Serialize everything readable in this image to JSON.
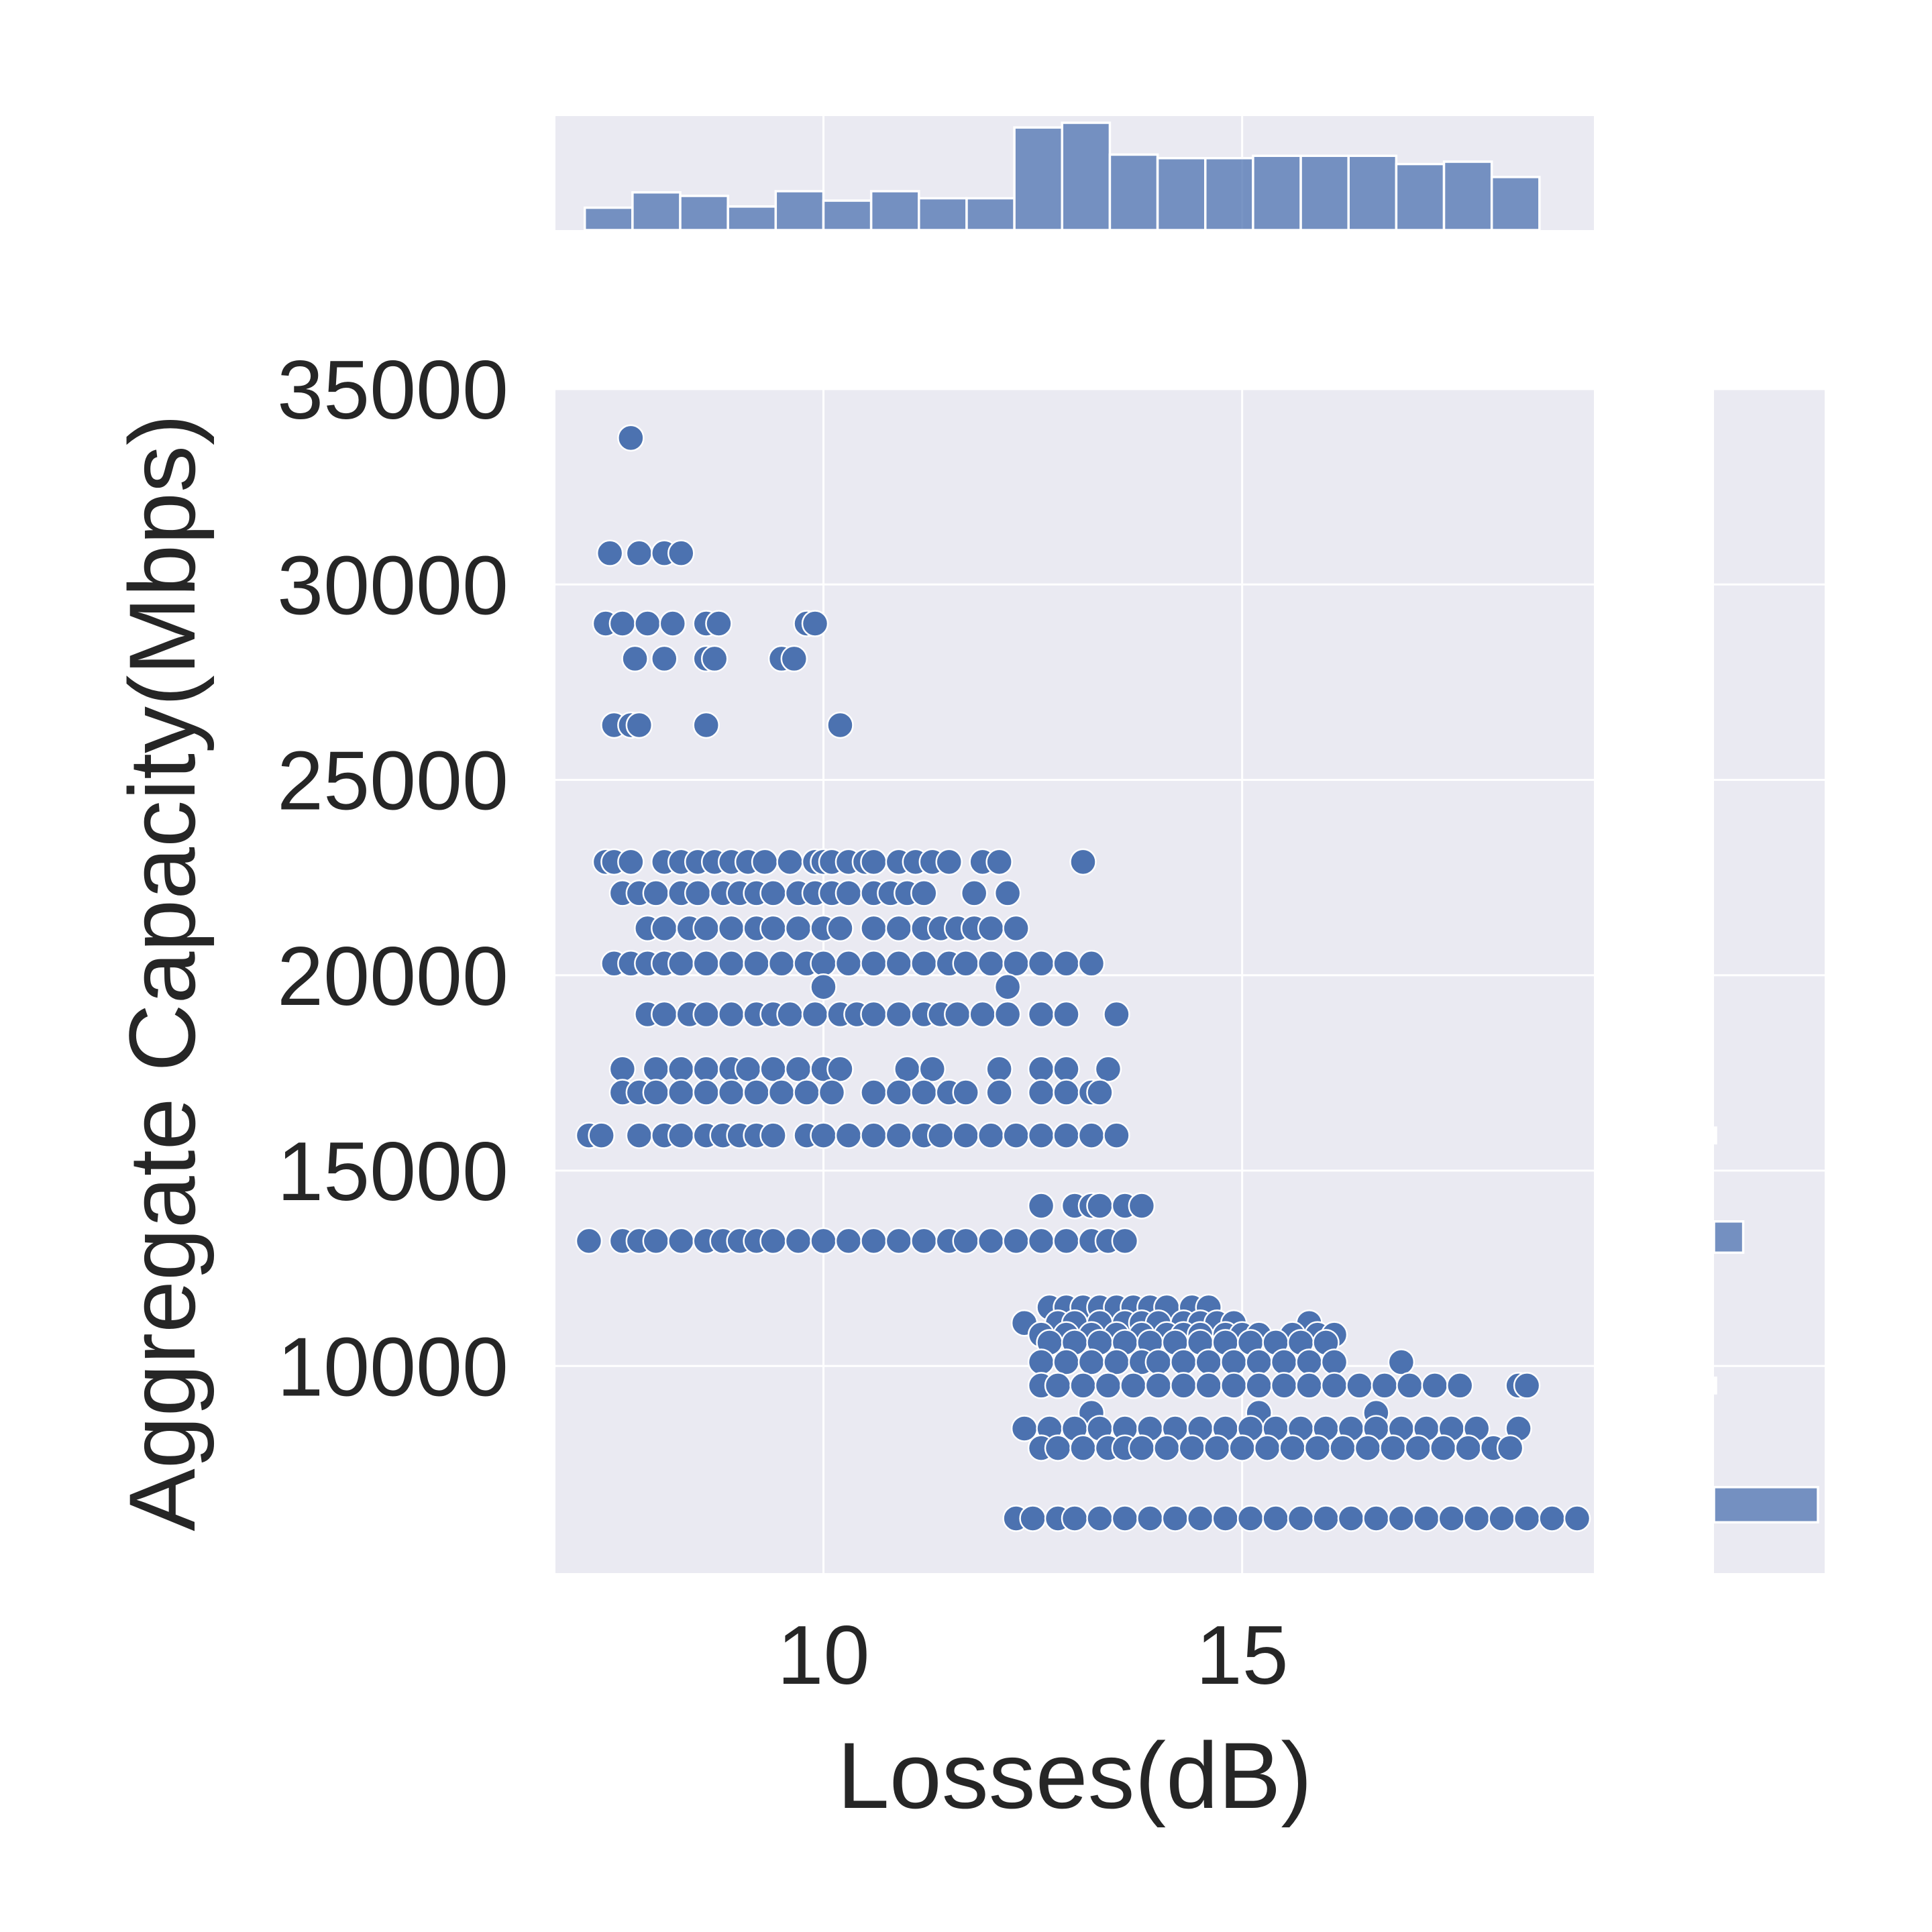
{
  "chart_data": {
    "type": "scatter",
    "subtype": "jointplot",
    "xlabel": "Losses(dB)",
    "ylabel": "Aggregate Capacity(Mbps)",
    "xlim": [
      6.8,
      19.2
    ],
    "ylim": [
      4700,
      35000
    ],
    "x_ticks": [
      10,
      15
    ],
    "y_ticks": [
      10000,
      15000,
      20000,
      25000,
      30000,
      35000
    ],
    "grid": true,
    "color": "#4c72b0",
    "marker_color": "#4c72b0",
    "background": "#eaeaf2",
    "rows": [
      {
        "y": 33750,
        "x": [
          7.7
        ]
      },
      {
        "y": 30800,
        "x": [
          7.45,
          7.8,
          8.1,
          8.3
        ]
      },
      {
        "y": 29000,
        "x": [
          7.4,
          7.6,
          7.9,
          8.2,
          8.6,
          8.75,
          9.8,
          9.9
        ]
      },
      {
        "y": 28100,
        "x": [
          7.75,
          8.1,
          8.6,
          8.7,
          9.5,
          9.65
        ]
      },
      {
        "y": 26400,
        "x": [
          7.5,
          7.7,
          7.8,
          8.6,
          10.2
        ]
      },
      {
        "y": 22900,
        "x": [
          7.4,
          7.5,
          7.7,
          8.1,
          8.3,
          8.5,
          8.7,
          8.9,
          9.1,
          9.3,
          9.6,
          9.9,
          10.0,
          10.1,
          10.3,
          10.5,
          10.6,
          10.9,
          11.1,
          11.3,
          11.5,
          11.9,
          12.1,
          13.1
        ]
      },
      {
        "y": 22100,
        "x": [
          7.6,
          7.8,
          8.0,
          8.3,
          8.5,
          8.8,
          9.0,
          9.2,
          9.4,
          9.7,
          9.9,
          10.1,
          10.3,
          10.6,
          10.8,
          11.0,
          11.2,
          11.8,
          12.2
        ]
      },
      {
        "y": 21200,
        "x": [
          7.9,
          8.1,
          8.4,
          8.6,
          8.9,
          9.2,
          9.4,
          9.7,
          10.0,
          10.2,
          10.6,
          10.9,
          11.2,
          11.4,
          11.6,
          11.8,
          12.0,
          12.3
        ]
      },
      {
        "y": 20300,
        "x": [
          7.5,
          7.7,
          7.9,
          8.1,
          8.3,
          8.6,
          8.9,
          9.2,
          9.5,
          9.8,
          10.0,
          10.3,
          10.6,
          10.9,
          11.2,
          11.5,
          11.7,
          12.0,
          12.3,
          12.6,
          12.9,
          13.2
        ]
      },
      {
        "y": 19700,
        "x": [
          10.0,
          12.2
        ]
      },
      {
        "y": 19000,
        "x": [
          7.9,
          8.1,
          8.4,
          8.6,
          8.9,
          9.2,
          9.4,
          9.6,
          9.9,
          10.2,
          10.4,
          10.6,
          10.9,
          11.2,
          11.4,
          11.6,
          11.9,
          12.2,
          12.6,
          12.9,
          13.5
        ]
      },
      {
        "y": 17600,
        "x": [
          7.6,
          8.0,
          8.3,
          8.6,
          8.9,
          9.1,
          9.4,
          9.7,
          10.0,
          10.2,
          11.0,
          11.3,
          12.1,
          12.6,
          12.9,
          13.4
        ]
      },
      {
        "y": 17000,
        "x": [
          7.6,
          7.8,
          8.0,
          8.3,
          8.6,
          8.9,
          9.2,
          9.5,
          9.8,
          10.1,
          10.6,
          10.9,
          11.2,
          11.5,
          11.7,
          12.1,
          12.6,
          12.9,
          13.2,
          13.3
        ]
      },
      {
        "y": 15900,
        "x": [
          7.2,
          7.35,
          7.8,
          8.1,
          8.3,
          8.6,
          8.8,
          9.0,
          9.2,
          9.4,
          9.8,
          10.0,
          10.3,
          10.6,
          10.9,
          11.2,
          11.4,
          11.7,
          12.0,
          12.3,
          12.6,
          12.9,
          13.2,
          13.5
        ]
      },
      {
        "y": 14100,
        "x": [
          12.6,
          13.0,
          13.2,
          13.3,
          13.6,
          13.8
        ]
      },
      {
        "y": 13200,
        "x": [
          7.2,
          7.6,
          7.8,
          8.0,
          8.3,
          8.6,
          8.8,
          9.0,
          9.2,
          9.4,
          9.7,
          10.0,
          10.3,
          10.6,
          10.9,
          11.2,
          11.5,
          11.7,
          12.0,
          12.3,
          12.6,
          12.9,
          13.2,
          13.4,
          13.6
        ]
      },
      {
        "y": 11500,
        "x": [
          12.7,
          12.9,
          13.1,
          13.3,
          13.5,
          13.7,
          13.9,
          14.1,
          14.4,
          14.6
        ]
      },
      {
        "y": 11100,
        "x": [
          12.4,
          12.8,
          13.0,
          13.3,
          13.6,
          13.8,
          14.0,
          14.3,
          14.5,
          14.7,
          14.9,
          15.8
        ]
      },
      {
        "y": 10800,
        "x": [
          12.6,
          12.9,
          13.2,
          13.5,
          13.8,
          14.1,
          14.3,
          14.5,
          14.8,
          15.0,
          15.2,
          15.6,
          15.9,
          16.1
        ]
      },
      {
        "y": 10600,
        "x": [
          12.7,
          13.0,
          13.3,
          13.6,
          13.9,
          14.2,
          14.5,
          14.8,
          15.1,
          15.4,
          15.7,
          16.0
        ]
      },
      {
        "y": 10100,
        "x": [
          12.6,
          12.9,
          13.2,
          13.5,
          13.8,
          14.0,
          14.3,
          14.6,
          14.9,
          15.2,
          15.5,
          15.8,
          16.1,
          16.9
        ]
      },
      {
        "y": 9500,
        "x": [
          12.6,
          12.8,
          13.1,
          13.4,
          13.7,
          14.0,
          14.3,
          14.6,
          14.9,
          15.2,
          15.5,
          15.8,
          16.1,
          16.4,
          16.7,
          17.0,
          17.3,
          17.6,
          18.3,
          18.4
        ]
      },
      {
        "y": 8800,
        "x": [
          13.2,
          15.2,
          16.6
        ]
      },
      {
        "y": 8400,
        "x": [
          12.4,
          12.7,
          13.0,
          13.3,
          13.6,
          13.9,
          14.2,
          14.5,
          14.8,
          15.1,
          15.4,
          15.7,
          16.0,
          16.3,
          16.6,
          16.9,
          17.2,
          17.5,
          17.8,
          18.3
        ]
      },
      {
        "y": 7900,
        "x": [
          12.6,
          12.8,
          13.1,
          13.4,
          13.6,
          13.8,
          14.1,
          14.4,
          14.7,
          15.0,
          15.3,
          15.6,
          15.9,
          16.2,
          16.5,
          16.8,
          17.1,
          17.4,
          17.7,
          18.0,
          18.2
        ]
      },
      {
        "y": 6100,
        "x": [
          12.3,
          12.5,
          12.8,
          13.0,
          13.3,
          13.6,
          13.9,
          14.2,
          14.5,
          14.8,
          15.1,
          15.4,
          15.7,
          16.0,
          16.3,
          16.6,
          16.9,
          17.2,
          17.5,
          17.8,
          18.1,
          18.4,
          18.7,
          19.0
        ]
      }
    ],
    "marginal_x": {
      "bin_edges": [
        7.15,
        7.72,
        8.29,
        8.86,
        9.43,
        10.0,
        10.57,
        11.14,
        11.71,
        12.28,
        12.85,
        13.42,
        13.99,
        14.56,
        15.13,
        15.7,
        16.27,
        16.84,
        17.41,
        17.98,
        18.55
      ],
      "counts": [
        19,
        32,
        29,
        20,
        33,
        25,
        33,
        27,
        27,
        87,
        91,
        64,
        61,
        61,
        63,
        63,
        63,
        56,
        58,
        45
      ]
    },
    "marginal_y": {
      "bins": [
        {
          "y": [
            6000,
            6900
          ],
          "count": 185
        },
        {
          "y": [
            9300,
            9700
          ],
          "count": 2
        },
        {
          "y": [
            12900,
            13700
          ],
          "count": 52
        },
        {
          "y": [
            15700,
            16100
          ],
          "count": 3
        }
      ]
    }
  }
}
